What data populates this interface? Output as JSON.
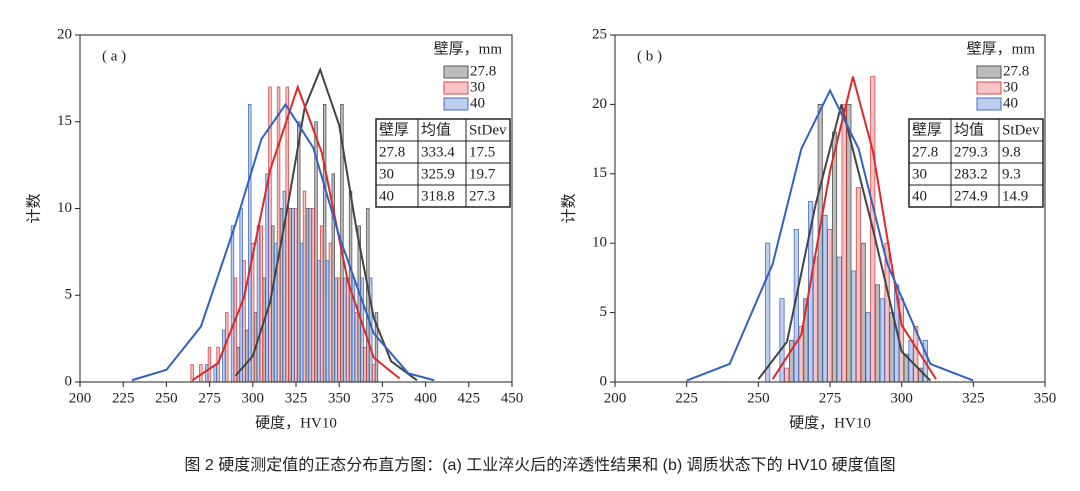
{
  "caption": "图 2  硬度测定值的正态分布直方图：(a) 工业淬火后的淬透性结果和 (b) 调质状态下的 HV10 硬度值图",
  "chart_data": [
    {
      "type": "bar",
      "label": "( a )",
      "xlabel": "硬度，HV10",
      "ylabel": "计数",
      "legend_title": "壁厚，mm",
      "xlim": [
        200,
        450
      ],
      "xticks": [
        200,
        225,
        250,
        275,
        300,
        325,
        350,
        375,
        400,
        425,
        450
      ],
      "ylim": [
        0,
        20
      ],
      "yticks": [
        0,
        5,
        10,
        15,
        20
      ],
      "bin_width": 5,
      "x": [
        265,
        270,
        275,
        280,
        285,
        290,
        295,
        300,
        305,
        310,
        315,
        320,
        325,
        330,
        335,
        340,
        345,
        350,
        355,
        360,
        365,
        370,
        375
      ],
      "series": [
        {
          "name": "27.8",
          "color": "#bdbdbd",
          "values": [
            0,
            0,
            0,
            0,
            0,
            2,
            3,
            4,
            6,
            9,
            10,
            10,
            15,
            10,
            15,
            16,
            12,
            16,
            11,
            9,
            10,
            4,
            0
          ]
        },
        {
          "name": "30",
          "color": "#f6c4c4",
          "values": [
            1,
            1,
            2,
            2,
            4,
            6,
            7,
            8,
            9,
            17,
            17,
            17,
            10,
            11,
            10,
            9,
            8,
            6,
            6,
            4,
            2,
            1,
            0
          ]
        },
        {
          "name": "40",
          "color": "#bccff0",
          "values": [
            0,
            0,
            1,
            1,
            3,
            9,
            10,
            16,
            9,
            12,
            8,
            11,
            10,
            8,
            10,
            7,
            7,
            6,
            6,
            6,
            6,
            6,
            0
          ]
        }
      ],
      "curves": [
        {
          "color": "#444444",
          "x": [
            290,
            300,
            310,
            320,
            330,
            339,
            350,
            360,
            370,
            380,
            395
          ],
          "values": [
            0.36,
            1.5,
            4.6,
            10.0,
            15.8,
            18,
            14.8,
            8.8,
            3.7,
            1.2,
            0.1
          ]
        },
        {
          "color": "#e02828",
          "x": [
            265,
            280,
            295,
            310,
            326,
            340,
            355,
            370,
            385
          ],
          "values": [
            0.1,
            1.1,
            4.9,
            12.2,
            17,
            13.2,
            5.8,
            1.4,
            0.2
          ]
        },
        {
          "color": "#3262c0",
          "x": [
            230,
            250,
            270,
            290,
            305,
            319,
            335,
            350,
            370,
            390,
            405
          ],
          "values": [
            0.1,
            0.7,
            3.2,
            9.1,
            14.0,
            16,
            13.5,
            8.4,
            2.8,
            0.5,
            0.1
          ]
        }
      ],
      "table": {
        "columns": [
          "壁厚",
          "均值",
          "StDev"
        ],
        "rows": [
          [
            27.8,
            333.4,
            17.5
          ],
          [
            30,
            325.9,
            19.7
          ],
          [
            40,
            318.8,
            27.3
          ]
        ]
      }
    },
    {
      "type": "bar",
      "label": "( b )",
      "xlabel": "硬度，HV10",
      "ylabel": "计数",
      "legend_title": "壁厚，mm",
      "xlim": [
        200,
        350
      ],
      "xticks": [
        200,
        225,
        250,
        275,
        300,
        325,
        350
      ],
      "ylim": [
        0,
        25
      ],
      "yticks": [
        0,
        5,
        10,
        15,
        20,
        25
      ],
      "bin_width": 5,
      "x": [
        255,
        260,
        265,
        270,
        275,
        280,
        285,
        290,
        295,
        300,
        305,
        310
      ],
      "series": [
        {
          "name": "27.8",
          "color": "#bdbdbd",
          "values": [
            0,
            3,
            6,
            20,
            18,
            20,
            10,
            7,
            5,
            2,
            1,
            0
          ]
        },
        {
          "name": "30",
          "color": "#f6c4c4",
          "values": [
            0,
            1,
            4,
            9,
            11,
            20,
            14,
            22,
            10,
            6,
            4,
            0
          ]
        },
        {
          "name": "40",
          "color": "#bccff0",
          "values": [
            10,
            6,
            11,
            13,
            12,
            9,
            8,
            5,
            6,
            7,
            3,
            3
          ]
        }
      ],
      "curves": [
        {
          "color": "#444444",
          "x": [
            250,
            260,
            270,
            279,
            290,
            300,
            310
          ],
          "values": [
            0.2,
            2.9,
            12.8,
            20,
            11.0,
            2.2,
            0.1
          ]
        },
        {
          "color": "#e02828",
          "x": [
            255,
            265,
            275,
            283,
            290,
            300,
            312
          ],
          "values": [
            0.2,
            3.4,
            15.2,
            22,
            16.6,
            4.1,
            0.2
          ]
        },
        {
          "color": "#3262c0",
          "x": [
            225,
            240,
            255,
            265,
            275,
            285,
            295,
            310,
            325
          ],
          "values": [
            0.1,
            1.3,
            8.5,
            16.8,
            21,
            16.8,
            8.5,
            1.3,
            0.1
          ]
        }
      ],
      "table": {
        "columns": [
          "壁厚",
          "均值",
          "StDev"
        ],
        "rows": [
          [
            27.8,
            279.3,
            9.8
          ],
          [
            30,
            283.2,
            9.3
          ],
          [
            40,
            274.9,
            14.9
          ]
        ]
      }
    }
  ]
}
